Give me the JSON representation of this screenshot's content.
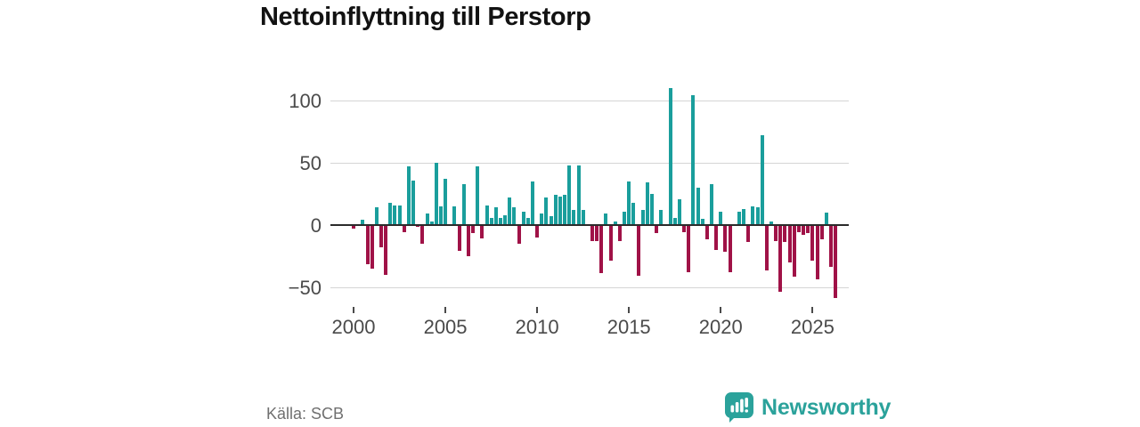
{
  "title": "Nettoinflyttning till Perstorp",
  "source": "Källa: SCB",
  "brand": {
    "name": "Newsworthy",
    "color": "#2ba29b"
  },
  "colors": {
    "positive": "#1a9e9c",
    "negative": "#a01247",
    "grid": "#d5d5d5",
    "axis": "#2b2b2b",
    "tick_text": "#4a4a4a",
    "title_text": "#121212",
    "source_text": "#707070"
  },
  "chart_data": {
    "type": "bar",
    "title": "Nettoinflyttning till Perstorp",
    "frequency": "quarterly",
    "x_start": {
      "year": 2000,
      "quarter": 1
    },
    "x_tick_years": [
      2000,
      2005,
      2010,
      2015,
      2020,
      2025
    ],
    "y_ticks": [
      100,
      50,
      0,
      -50
    ],
    "y_tick_labels": [
      "100",
      "50",
      "0",
      "−50"
    ],
    "ylim": [
      -62,
      118
    ],
    "grid": true,
    "legend": "none",
    "positive_color_meaning": "net in-migration",
    "negative_color_meaning": "net out-migration",
    "values": [
      -2,
      0,
      4,
      -31,
      -34,
      14,
      -17,
      -39,
      18,
      16,
      16,
      -5,
      47,
      36,
      -1,
      -14,
      9,
      3,
      50,
      15,
      37,
      0,
      15,
      -20,
      33,
      -24,
      -6,
      47,
      -10,
      16,
      6,
      14,
      6,
      8,
      22,
      14,
      -14,
      11,
      6,
      35,
      -9,
      9,
      22,
      7,
      24,
      23,
      24,
      48,
      12,
      48,
      12,
      0,
      -12,
      -12,
      -38,
      9,
      -28,
      3,
      -12,
      11,
      35,
      18,
      -40,
      12,
      34,
      25,
      -6,
      12,
      0,
      110,
      6,
      21,
      -5,
      -37,
      104,
      30,
      5,
      -11,
      33,
      -19,
      11,
      -21,
      -37,
      0,
      11,
      13,
      -13,
      15,
      14,
      72,
      -36,
      3,
      -12,
      -53,
      -13,
      -29,
      -41,
      -5,
      -7,
      -6,
      -28,
      -43,
      -11,
      10,
      -33,
      -58
    ]
  }
}
